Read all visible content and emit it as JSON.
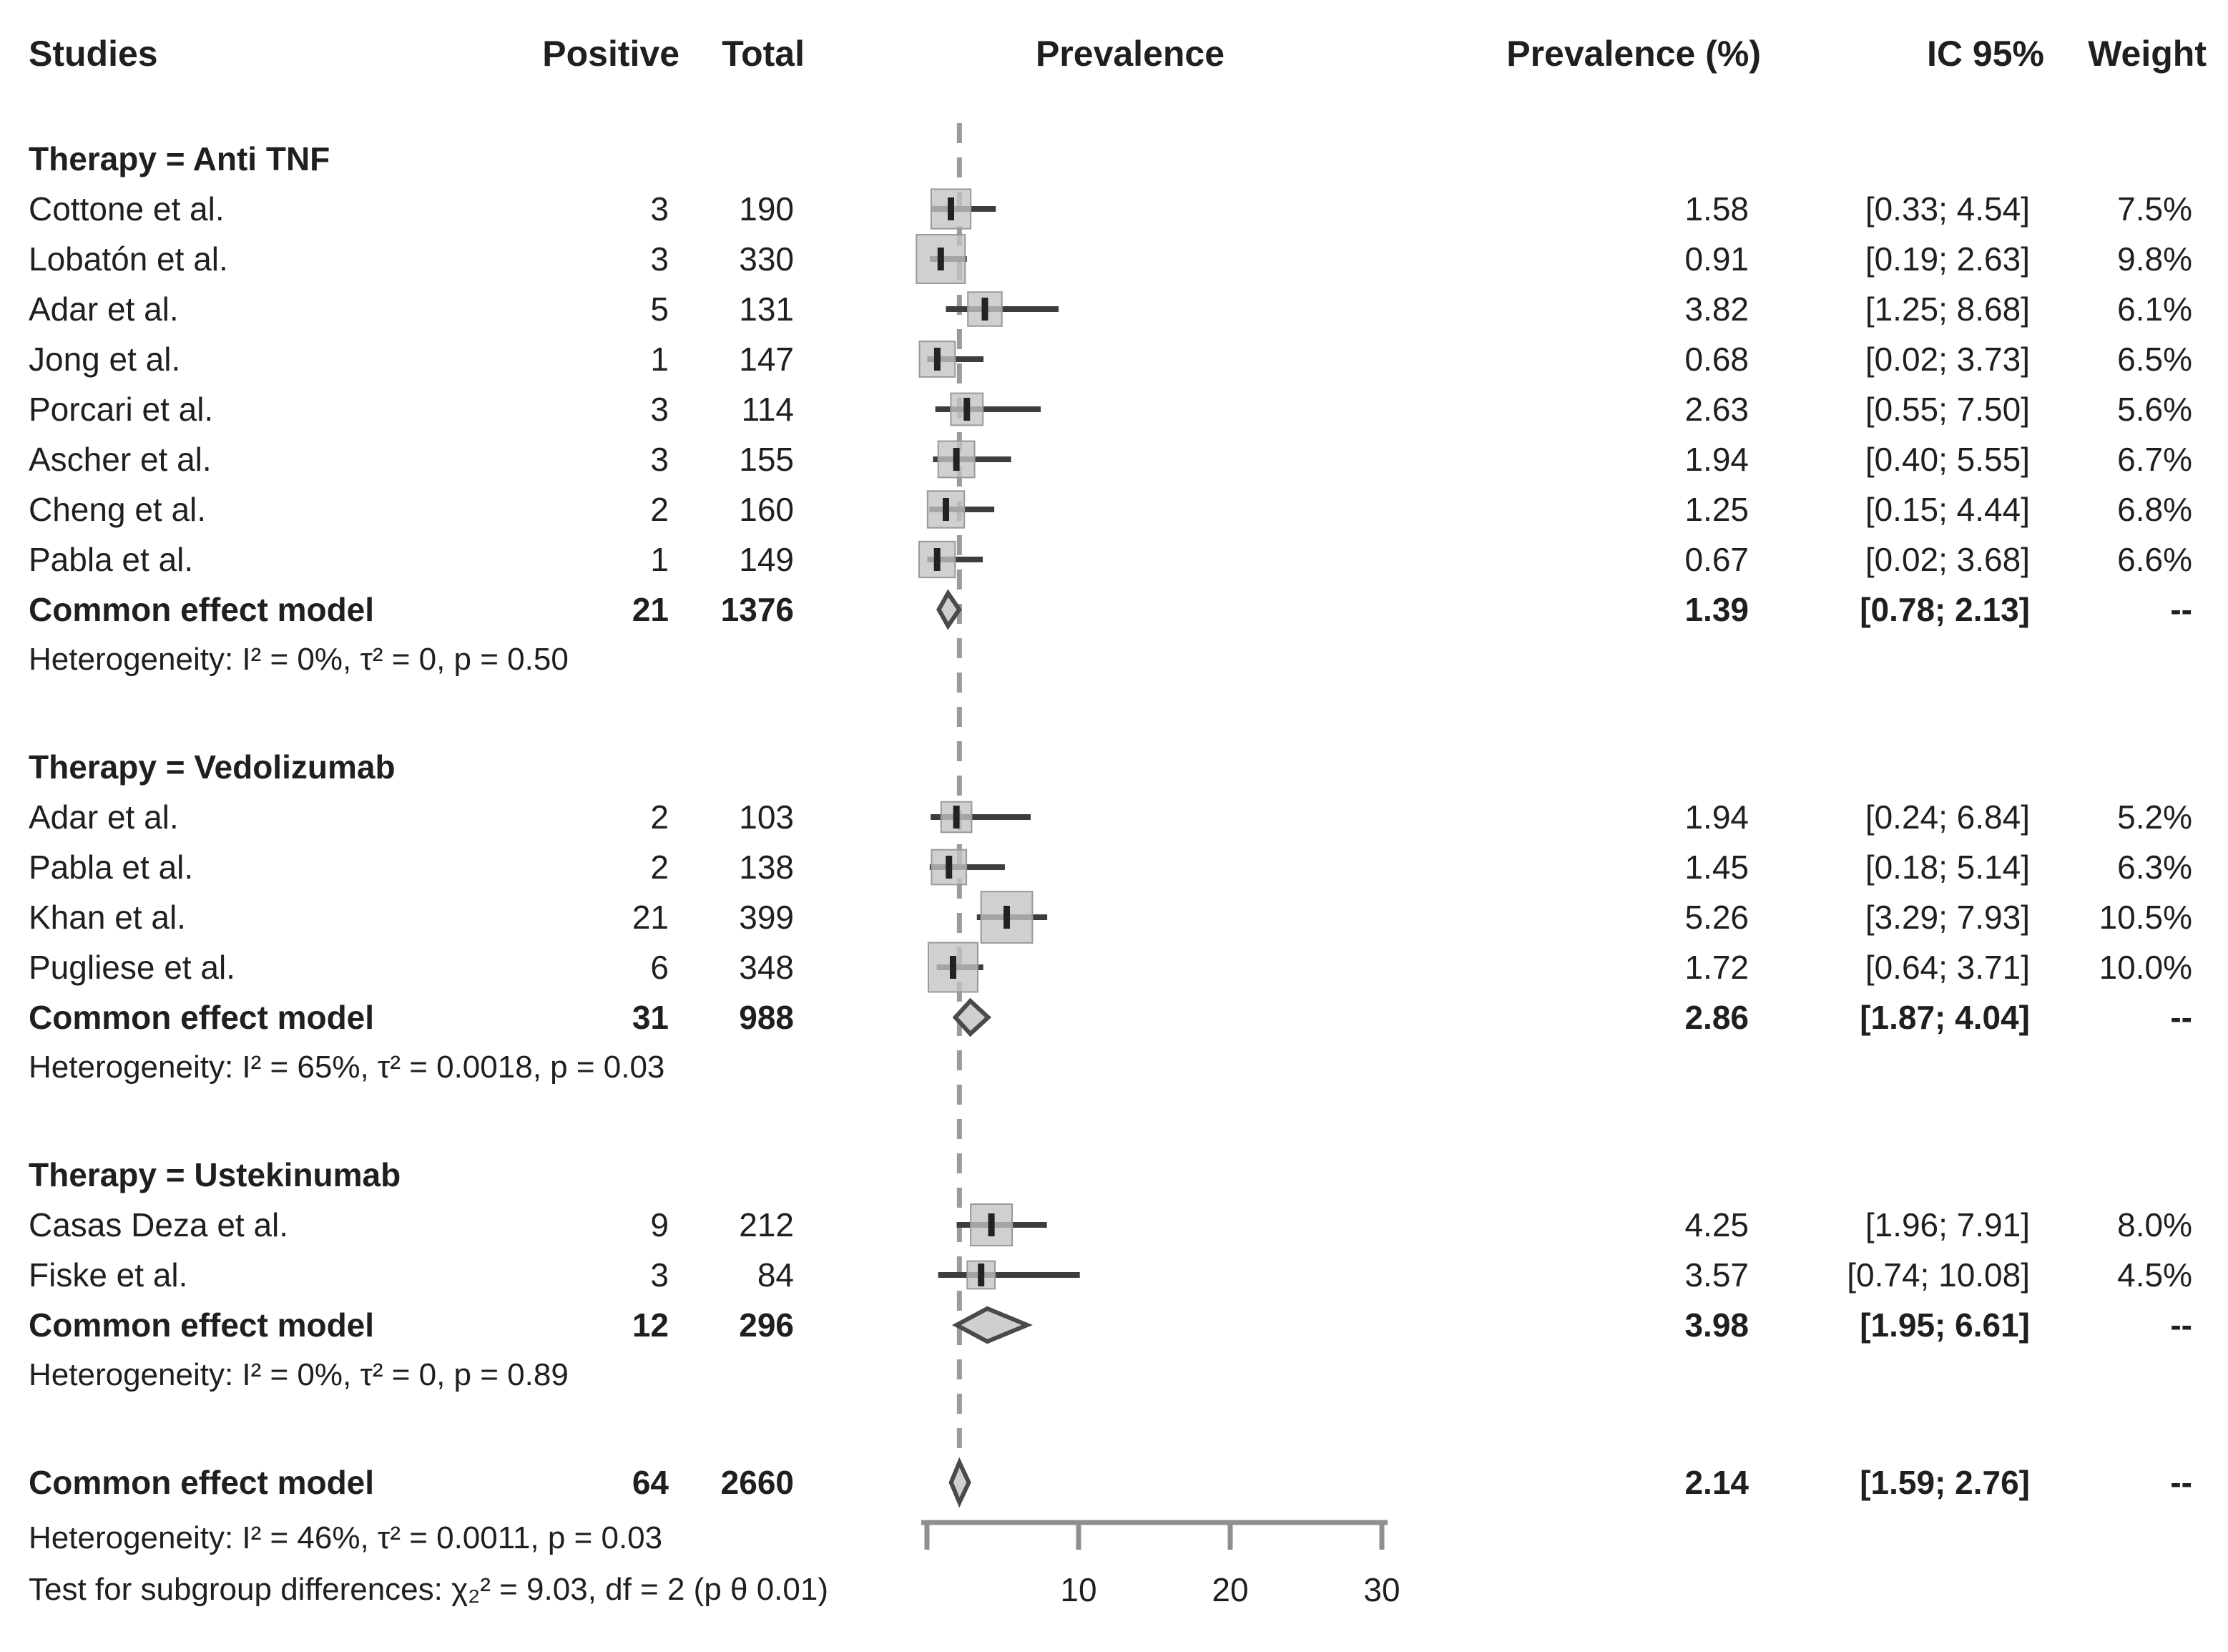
{
  "chart_data": {
    "type": "scatter",
    "subtype": "forest_plot",
    "title": "",
    "columns": [
      "Studies",
      "Positive",
      "Total",
      "Prevalence",
      "Prevalence (%)",
      "IC 95%",
      "Weight"
    ],
    "axis": {
      "xlim": [
        0,
        30
      ],
      "ticks": [
        0,
        10,
        20,
        30
      ],
      "tick_labels": [
        "",
        "10",
        "20",
        "30"
      ],
      "reference_line_x": 2.14,
      "grid": false,
      "legend": "none"
    },
    "groups": [
      {
        "label": "Therapy = Anti TNF",
        "studies": [
          {
            "study": "Cottone et al.",
            "positive": 3,
            "total": 190,
            "prevalence": 1.58,
            "ci": [
              0.33,
              4.54
            ],
            "ci_text": "[0.33; 4.54]",
            "weight": "7.5%"
          },
          {
            "study": "Lobatón et al.",
            "positive": 3,
            "total": 330,
            "prevalence": 0.91,
            "ci": [
              0.19,
              2.63
            ],
            "ci_text": "[0.19; 2.63]",
            "weight": "9.8%"
          },
          {
            "study": "Adar et al.",
            "positive": 5,
            "total": 131,
            "prevalence": 3.82,
            "ci": [
              1.25,
              8.68
            ],
            "ci_text": "[1.25; 8.68]",
            "weight": "6.1%"
          },
          {
            "study": "Jong et al.",
            "positive": 1,
            "total": 147,
            "prevalence": 0.68,
            "ci": [
              0.02,
              3.73
            ],
            "ci_text": "[0.02; 3.73]",
            "weight": "6.5%"
          },
          {
            "study": "Porcari et al.",
            "positive": 3,
            "total": 114,
            "prevalence": 2.63,
            "ci": [
              0.55,
              7.5
            ],
            "ci_text": "[0.55; 7.50]",
            "weight": "5.6%"
          },
          {
            "study": "Ascher et al.",
            "positive": 3,
            "total": 155,
            "prevalence": 1.94,
            "ci": [
              0.4,
              5.55
            ],
            "ci_text": "[0.40; 5.55]",
            "weight": "6.7%"
          },
          {
            "study": "Cheng et al.",
            "positive": 2,
            "total": 160,
            "prevalence": 1.25,
            "ci": [
              0.15,
              4.44
            ],
            "ci_text": "[0.15; 4.44]",
            "weight": "6.8%"
          },
          {
            "study": "Pabla et al.",
            "positive": 1,
            "total": 149,
            "prevalence": 0.67,
            "ci": [
              0.02,
              3.68
            ],
            "ci_text": "[0.02; 3.68]",
            "weight": "6.6%"
          }
        ],
        "summary": {
          "study": "Common effect model",
          "positive": 21,
          "total": 1376,
          "prevalence": 1.39,
          "ci": [
            0.78,
            2.13
          ],
          "ci_text": "[0.78; 2.13]",
          "weight": "--"
        },
        "heterogeneity": "Heterogeneity: I² = 0%, τ² = 0, p = 0.50"
      },
      {
        "label": "Therapy = Vedolizumab",
        "studies": [
          {
            "study": "Adar et al.",
            "positive": 2,
            "total": 103,
            "prevalence": 1.94,
            "ci": [
              0.24,
              6.84
            ],
            "ci_text": "[0.24; 6.84]",
            "weight": "5.2%"
          },
          {
            "study": "Pabla et al.",
            "positive": 2,
            "total": 138,
            "prevalence": 1.45,
            "ci": [
              0.18,
              5.14
            ],
            "ci_text": "[0.18; 5.14]",
            "weight": "6.3%"
          },
          {
            "study": "Khan et al.",
            "positive": 21,
            "total": 399,
            "prevalence": 5.26,
            "ci": [
              3.29,
              7.93
            ],
            "ci_text": "[3.29; 7.93]",
            "weight": "10.5%"
          },
          {
            "study": "Pugliese et al.",
            "positive": 6,
            "total": 348,
            "prevalence": 1.72,
            "ci": [
              0.64,
              3.71
            ],
            "ci_text": "[0.64; 3.71]",
            "weight": "10.0%"
          }
        ],
        "summary": {
          "study": "Common effect model",
          "positive": 31,
          "total": 988,
          "prevalence": 2.86,
          "ci": [
            1.87,
            4.04
          ],
          "ci_text": "[1.87; 4.04]",
          "weight": "--"
        },
        "heterogeneity": "Heterogeneity: I² = 65%, τ² = 0.0018, p = 0.03"
      },
      {
        "label": "Therapy = Ustekinumab",
        "studies": [
          {
            "study": "Casas Deza et al.",
            "positive": 9,
            "total": 212,
            "prevalence": 4.25,
            "ci": [
              1.96,
              7.91
            ],
            "ci_text": "[1.96; 7.91]",
            "weight": "8.0%"
          },
          {
            "study": "Fiske et al.",
            "positive": 3,
            "total": 84,
            "prevalence": 3.57,
            "ci": [
              0.74,
              10.08
            ],
            "ci_text": "[0.74; 10.08]",
            "weight": "4.5%"
          }
        ],
        "summary": {
          "study": "Common effect model",
          "positive": 12,
          "total": 296,
          "prevalence": 3.98,
          "ci": [
            1.95,
            6.61
          ],
          "ci_text": "[1.95; 6.61]",
          "weight": "--"
        },
        "heterogeneity": "Heterogeneity: I² = 0%, τ² = 0, p = 0.89"
      }
    ],
    "overall": {
      "study": "Common effect model",
      "positive": 64,
      "total": 2660,
      "prevalence": 2.14,
      "ci": [
        1.59,
        2.76
      ],
      "ci_text": "[1.59; 2.76]",
      "weight": "--"
    },
    "overall_heterogeneity": "Heterogeneity: I² = 46%, τ² = 0.0011, p = 0.03",
    "subgroup_test": "Test for subgroup differences: χ₂² = 9.03, df = 2 (p θ 0.01)"
  },
  "colors": {
    "text": "#1f1f1f",
    "axis": "#8f8f8f",
    "ci_line": "#3d3d3d",
    "marker_tick": "#222222",
    "square_fill": "#c3c3c3",
    "square_edge": "#999999",
    "diamond_fill": "#cfcfcf",
    "diamond_edge": "#4a4a4a",
    "reference_line": "#9b9b9b"
  }
}
